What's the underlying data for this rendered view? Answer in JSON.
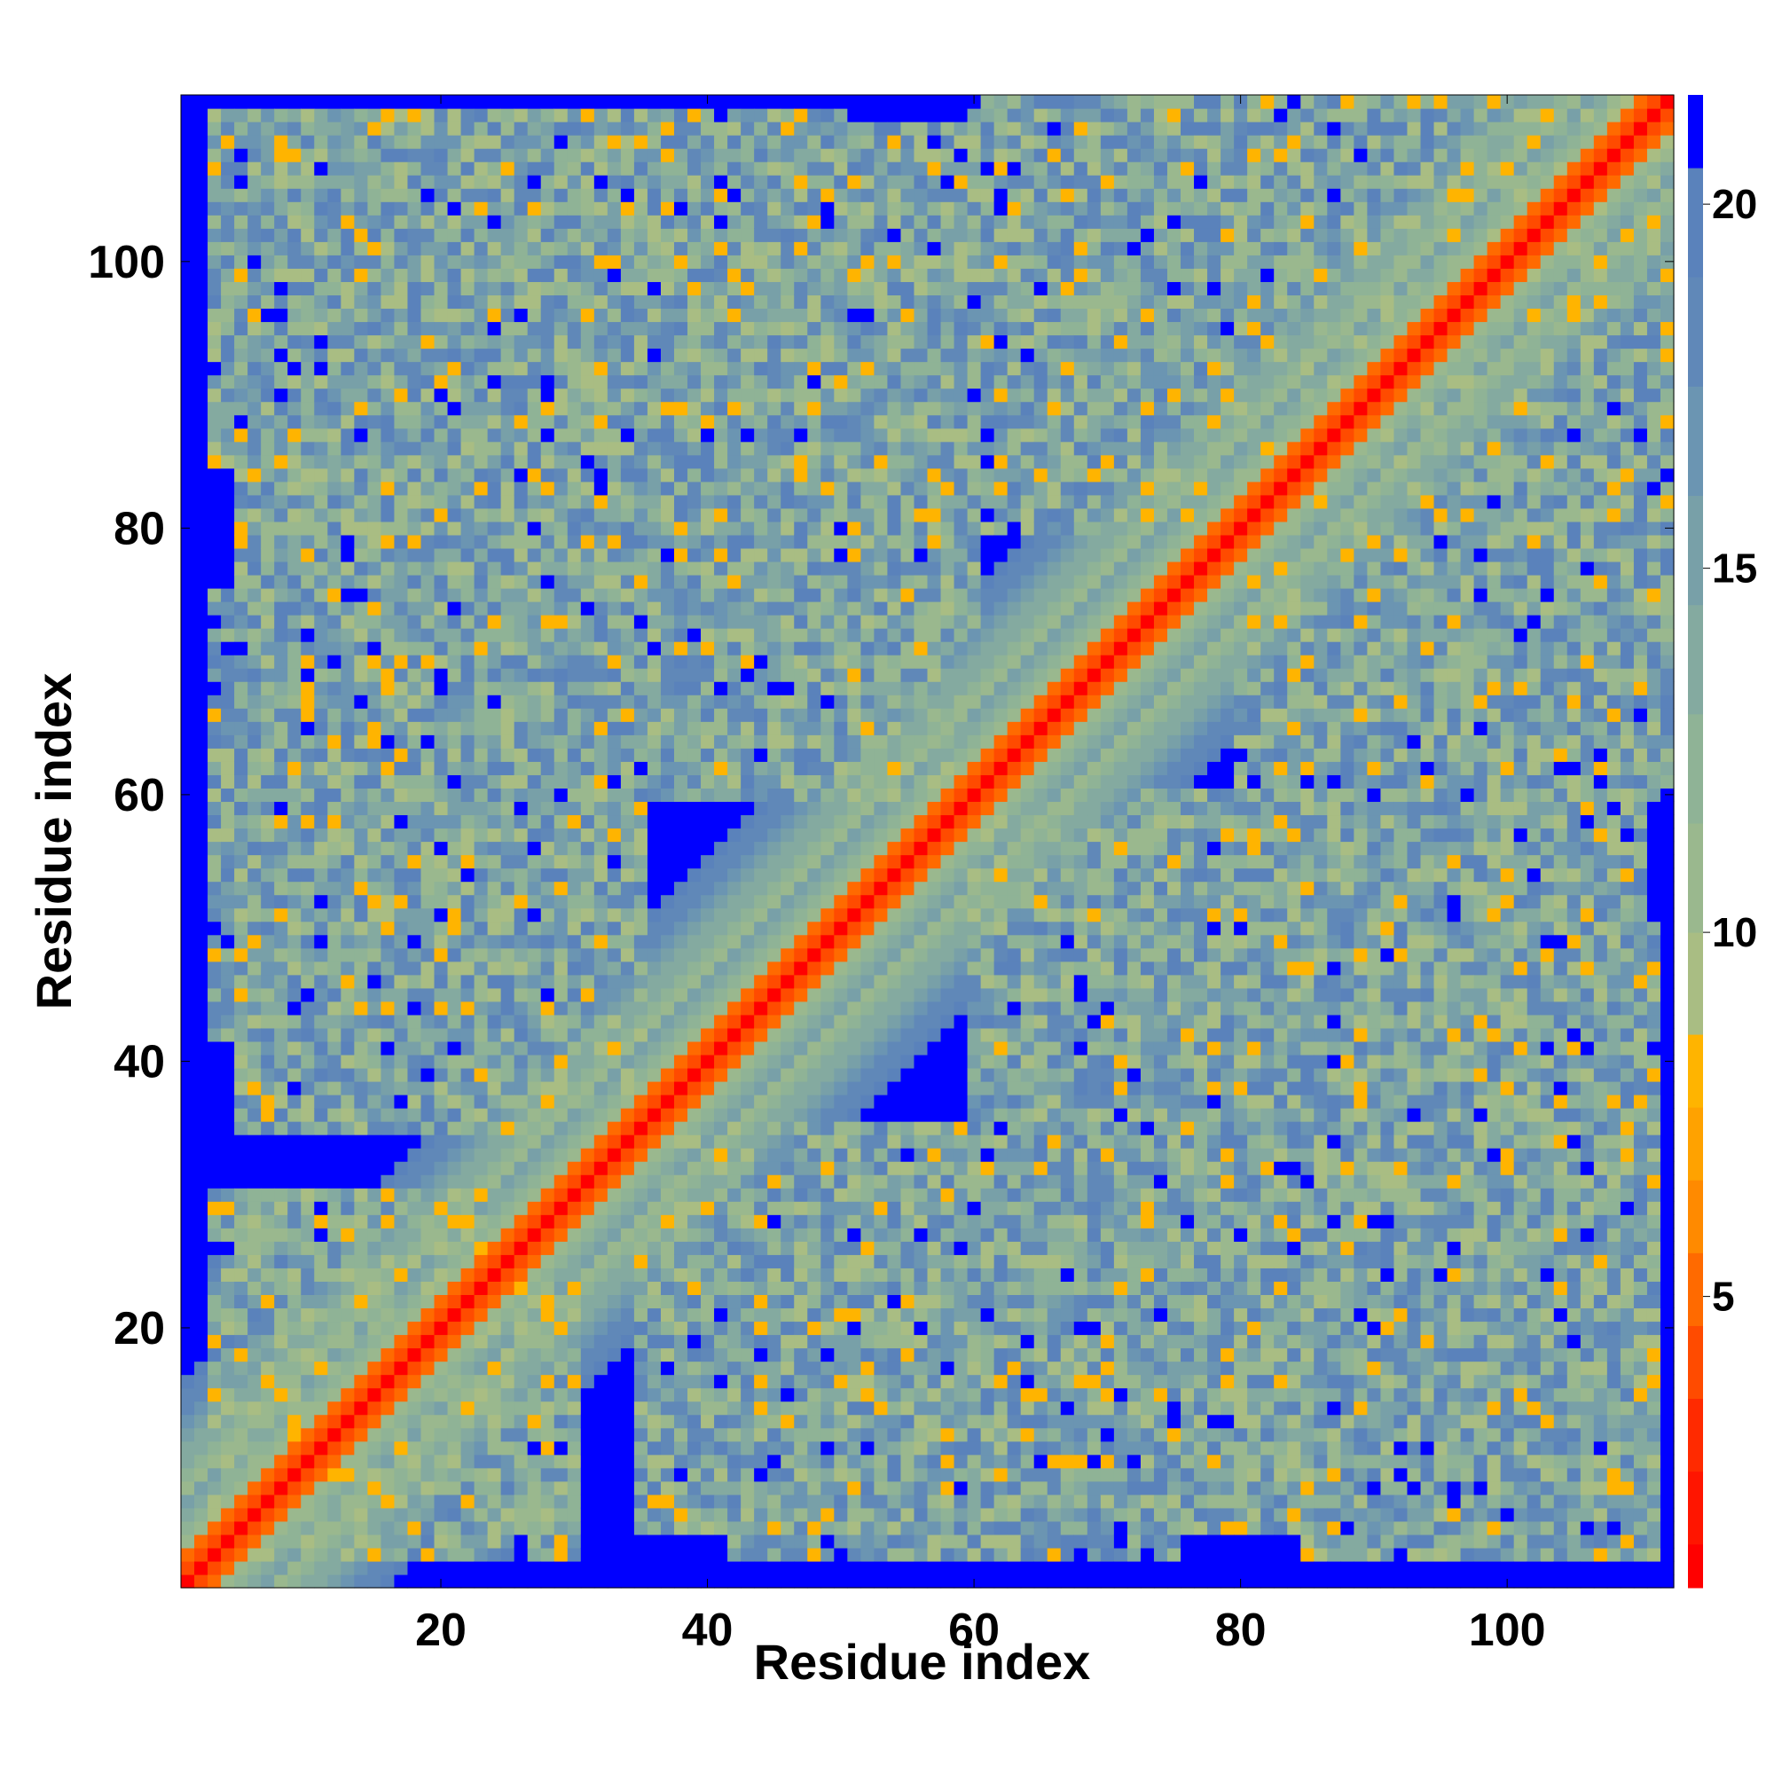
{
  "chart_data": {
    "type": "heatmap",
    "title": "",
    "xlabel": "Residue index",
    "ylabel": "Residue index",
    "n_residues": 112,
    "xlim": [
      1,
      112
    ],
    "ylim": [
      1,
      112
    ],
    "x_ticks": [
      20,
      40,
      60,
      80,
      100
    ],
    "y_ticks": [
      20,
      40,
      60,
      80,
      100
    ],
    "colorbar": {
      "min": 1,
      "max": 21.5,
      "ticks": [
        5,
        10,
        15,
        20
      ],
      "levels": [
        {
          "upper": 1.6,
          "color": "#ff0000"
        },
        {
          "upper": 2.6,
          "color": "#ff1500"
        },
        {
          "upper": 3.6,
          "color": "#ff2a00"
        },
        {
          "upper": 4.6,
          "color": "#ff4b00"
        },
        {
          "upper": 5.6,
          "color": "#ff6a00"
        },
        {
          "upper": 6.6,
          "color": "#ff8a00"
        },
        {
          "upper": 7.6,
          "color": "#ffa200"
        },
        {
          "upper": 8.6,
          "color": "#ffb400"
        },
        {
          "upper": 10.0,
          "color": "#a9bd83"
        },
        {
          "upper": 11.5,
          "color": "#9ab88e"
        },
        {
          "upper": 13.0,
          "color": "#8fb396"
        },
        {
          "upper": 14.5,
          "color": "#84aaa0"
        },
        {
          "upper": 16.0,
          "color": "#78a0a8"
        },
        {
          "upper": 17.5,
          "color": "#6b95b2"
        },
        {
          "upper": 19.0,
          "color": "#6088b8"
        },
        {
          "upper": 20.5,
          "color": "#5a82bb"
        },
        {
          "upper": 21.5,
          "color": "#0000ff"
        }
      ]
    },
    "contact_regions": [
      {
        "name": "diagonal",
        "x_range": [
          1,
          112
        ],
        "y_range": [
          1,
          112
        ]
      },
      {
        "x_range": [
          3,
          50
        ],
        "y_range": [
          85,
          111
        ]
      },
      {
        "x_range": [
          30,
          60
        ],
        "y_range": [
          70,
          100
        ]
      },
      {
        "x_range": [
          3,
          35
        ],
        "y_range": [
          42,
          75
        ]
      },
      {
        "x_range": [
          3,
          30
        ],
        "y_range": [
          5,
          30
        ]
      },
      {
        "x_range": [
          35,
          60
        ],
        "y_range": [
          5,
          35
        ]
      },
      {
        "x_range": [
          60,
          110
        ],
        "y_range": [
          5,
          60
        ]
      },
      {
        "x_range": [
          80,
          112
        ],
        "y_range": [
          60,
          100
        ]
      },
      {
        "x_range": [
          75,
          110
        ],
        "y_range": [
          95,
          112
        ]
      }
    ]
  }
}
